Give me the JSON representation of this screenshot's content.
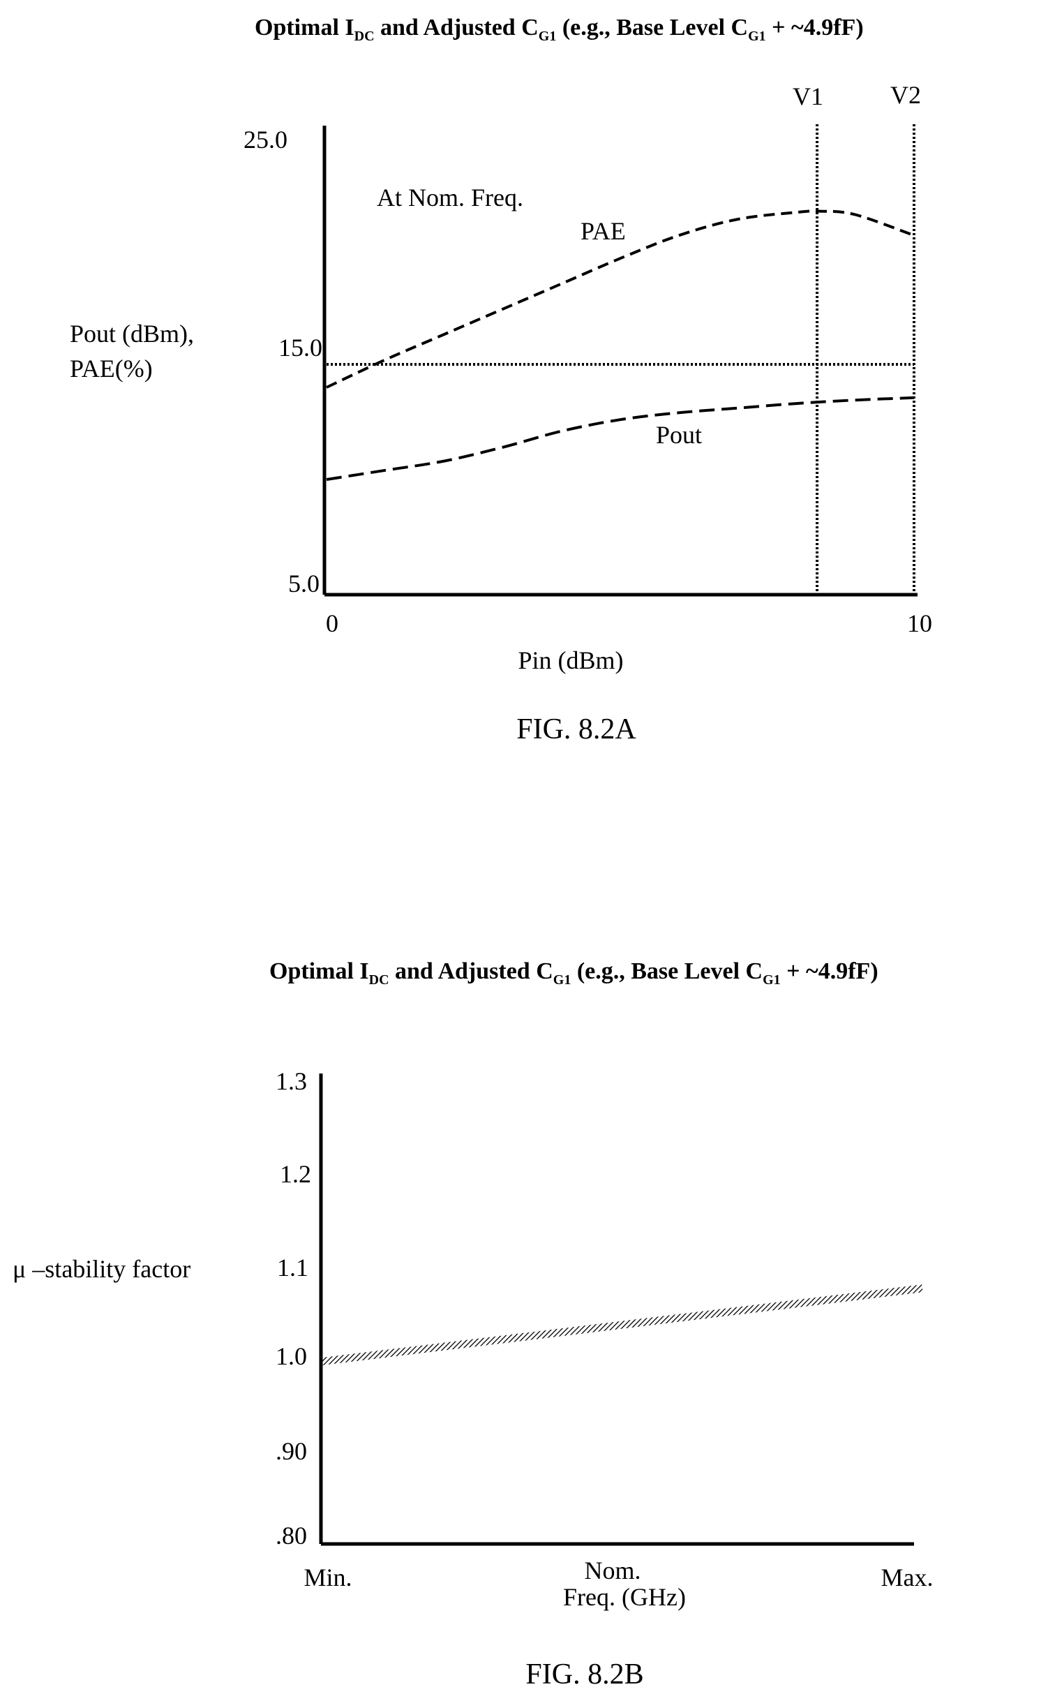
{
  "chart_data": [
    {
      "type": "line",
      "figure_label": "FIG. 8.2A",
      "title": {
        "p1": "Optimal I",
        "s1": "DC",
        "p2": " and Adjusted C",
        "s2": "G1",
        "p3": " (e.g., Base Level C",
        "s3": "G1",
        "p4": " +   ~4.9fF)"
      },
      "xlabel": "Pin (dBm)",
      "ylabel_lines": [
        "Pout (dBm),",
        "PAE(%)"
      ],
      "xlim": [
        0,
        10
      ],
      "ylim": [
        5.0,
        25.0
      ],
      "x_tick_labels": [
        "0",
        "10"
      ],
      "y_tick_labels": [
        "25.0",
        "15.0",
        "5.0"
      ],
      "annotation": "At Nom. Freq.",
      "grid": false,
      "reference_line": {
        "y": 15.0,
        "style": "dotted"
      },
      "markers": [
        {
          "label": "V1",
          "x": 8.35
        },
        {
          "label": "V2",
          "x": 10.0
        }
      ],
      "series": [
        {
          "name": "PAE",
          "style": "dashed",
          "x": [
            0,
            1,
            2,
            3,
            4,
            5,
            6,
            7,
            8,
            8.4,
            9,
            10
          ],
          "y": [
            14.0,
            15.2,
            16.3,
            17.4,
            18.5,
            19.6,
            20.6,
            21.3,
            21.6,
            21.65,
            21.5,
            20.6
          ]
        },
        {
          "name": "Pout",
          "style": "dashed",
          "x": [
            0,
            1,
            2,
            3,
            4,
            5,
            6,
            7,
            8,
            9,
            10
          ],
          "y": [
            10.0,
            10.4,
            10.8,
            11.4,
            12.1,
            12.6,
            12.9,
            13.1,
            13.3,
            13.45,
            13.55
          ]
        }
      ]
    },
    {
      "type": "line",
      "figure_label": "FIG. 8.2B",
      "title": {
        "p1": "Optimal I",
        "s1": "DC",
        "p2": " and Adjusted C",
        "s2": "G1",
        "p3": " (e.g., Base Level C",
        "s3": "G1",
        "p4": " +   ~4.9fF)"
      },
      "xlabel": "Freq. (GHz)",
      "ylabel": "μ –stability factor",
      "categories": [
        "Min.",
        "Nom.",
        "Max."
      ],
      "ylim": [
        0.8,
        1.3
      ],
      "y_tick_labels": [
        "1.3",
        "1.2",
        "1.1",
        "1.0",
        ".90",
        ".80"
      ],
      "grid": false,
      "series": [
        {
          "style": "hatched",
          "x": [
            0,
            1
          ],
          "y": [
            1.0,
            1.08
          ]
        }
      ]
    }
  ]
}
